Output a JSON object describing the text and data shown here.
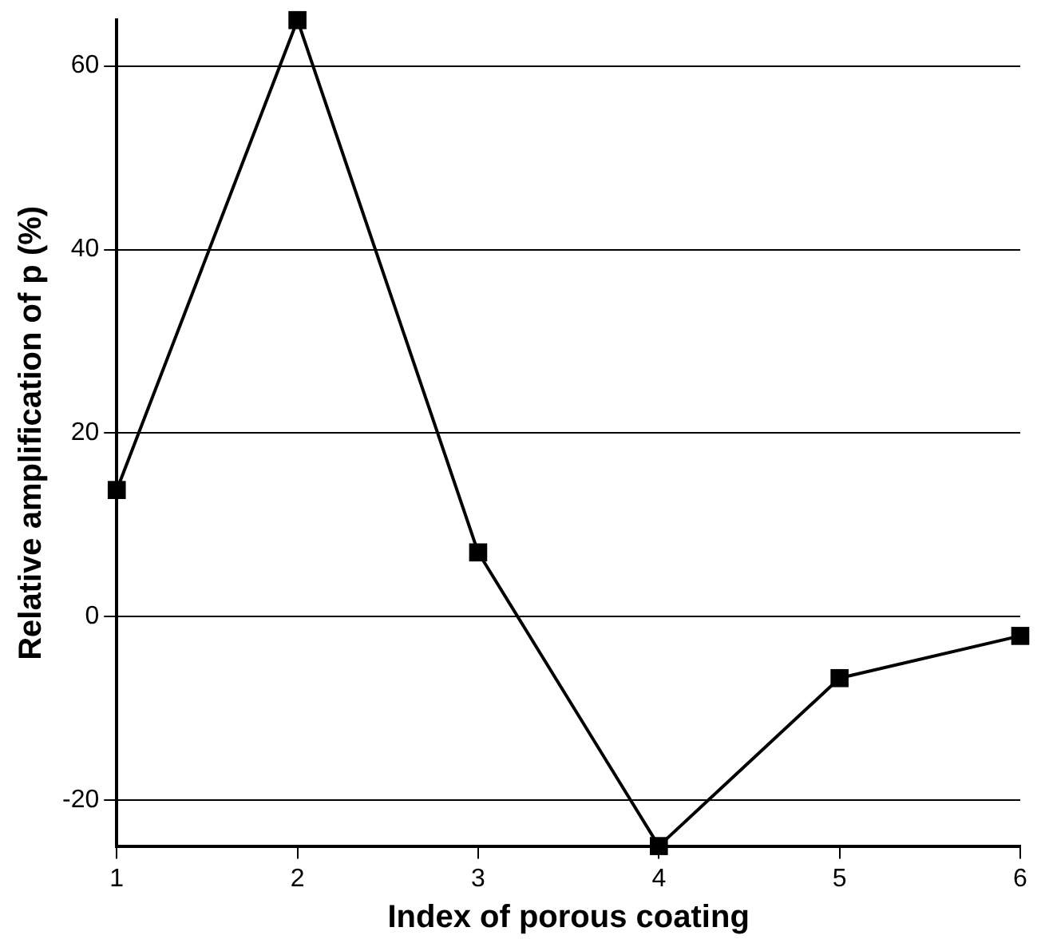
{
  "chart_data": {
    "type": "line",
    "xlabel": "Index of porous coating",
    "ylabel": "Relative amplification of p (%)",
    "x": [
      1,
      2,
      3,
      4,
      5,
      6
    ],
    "series": [
      {
        "color": "#000000",
        "values": [
          13.8,
          65,
          7,
          -25,
          -6.7,
          -2.1
        ]
      }
    ],
    "xlim": [
      1,
      6
    ],
    "xticks": [
      1,
      2,
      3,
      4,
      5,
      6
    ],
    "ylim": [
      -25,
      65
    ],
    "yticks": [
      -20,
      0,
      20,
      40,
      60
    ],
    "grid": "y",
    "legend": false,
    "marker": "square",
    "line_style": "solid"
  }
}
